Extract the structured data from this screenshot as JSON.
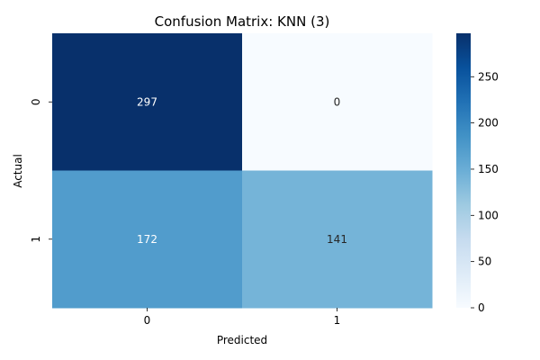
{
  "chart_data": {
    "type": "heatmap",
    "title": "Confusion Matrix: KNN (3)",
    "xlabel": "Predicted",
    "ylabel": "Actual",
    "x_categories": [
      "0",
      "1"
    ],
    "y_categories": [
      "0",
      "1"
    ],
    "values": [
      [
        297,
        0
      ],
      [
        172,
        141
      ]
    ],
    "colorbar": {
      "min": 0,
      "max": 297,
      "ticks": [
        0,
        50,
        100,
        150,
        200,
        250
      ],
      "colormap": "Blues",
      "colors": [
        "#f7fbff",
        "#deebf7",
        "#c6dbef",
        "#9ecae1",
        "#6baed6",
        "#4292c6",
        "#2171b5",
        "#08519c",
        "#08306b"
      ]
    },
    "cell_text_dark": "#262626",
    "cell_text_light": "#ffffff"
  }
}
